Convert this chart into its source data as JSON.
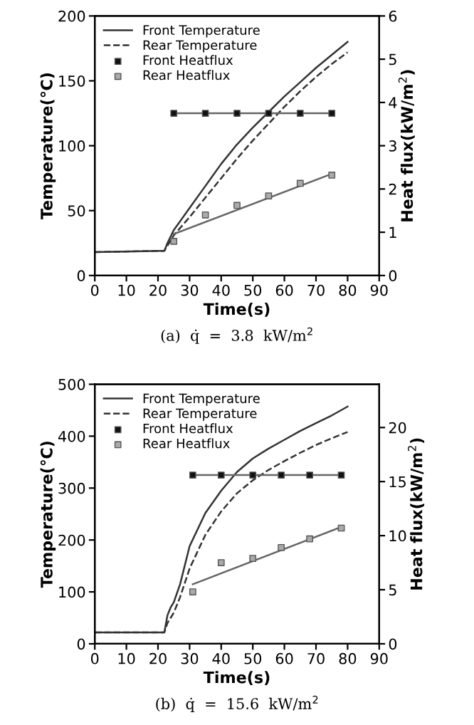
{
  "chart_data": [
    {
      "type": "line",
      "xlabel": "Time(s)",
      "ylabel": "Temperature(℃)",
      "y2label": "Heat flux(kW/m$^{2}$)",
      "xlim": [
        0,
        90
      ],
      "xticks": [
        0,
        10,
        20,
        30,
        40,
        50,
        60,
        70,
        80,
        90
      ],
      "ylim": [
        0,
        200
      ],
      "yticks": [
        0,
        50,
        100,
        150,
        200
      ],
      "y2lim": [
        0,
        6
      ],
      "y2ticks": [
        0,
        1,
        2,
        3,
        4,
        5,
        6
      ],
      "grid": false,
      "legend": "top left",
      "annotations": [
        "(a)  q̇  =  3.8  kW/m$^{2}$"
      ],
      "series": [
        {
          "name": "Front Temperature",
          "color": "#333333",
          "line_style": "solid",
          "x": [
            0,
            21,
            22,
            23,
            25,
            30,
            35,
            40,
            45,
            50,
            55,
            60,
            65,
            70,
            75,
            80
          ],
          "values": [
            18,
            19,
            19,
            25,
            35,
            52,
            69,
            86,
            101,
            114,
            126,
            138,
            149,
            160,
            170,
            180
          ]
        },
        {
          "name": "Rear Temperature",
          "color": "#333333",
          "line_style": "dashed",
          "x": [
            0,
            21,
            22,
            25,
            30,
            35,
            40,
            45,
            50,
            55,
            60,
            65,
            70,
            75,
            80
          ],
          "values": [
            18,
            19,
            19,
            31,
            45,
            60,
            75,
            90,
            104,
            117,
            130,
            142,
            153,
            163,
            172
          ]
        },
        {
          "name": "Front Heatflux",
          "type": "scatter",
          "axis": "y2",
          "marker": "square",
          "color": "#111111",
          "x": [
            25,
            35,
            45,
            55,
            65,
            75
          ],
          "values": [
            3.75,
            3.75,
            3.75,
            3.75,
            3.75,
            3.75
          ]
        },
        {
          "name": "Rear Heatflux",
          "type": "scatter",
          "axis": "y2",
          "marker": "square",
          "color": "#aaaaaa",
          "x": [
            25,
            35,
            45,
            55,
            65,
            75
          ],
          "values": [
            0.79,
            1.4,
            1.62,
            1.84,
            2.13,
            2.32
          ]
        },
        {
          "axis": "y2",
          "color": "#666666",
          "line_style": "solid",
          "x": [
            25,
            75
          ],
          "values": [
            3.75,
            3.75
          ]
        },
        {
          "axis": "y2",
          "color": "#666666",
          "line_style": "solid",
          "x": [
            25,
            75
          ],
          "values": [
            0.96,
            2.35
          ]
        }
      ]
    },
    {
      "type": "line",
      "xlabel": "Time(s)",
      "ylabel": "Temperature(℃)",
      "y2label": "Heat flux(kW/m$^{2}$)",
      "xlim": [
        0,
        90
      ],
      "xticks": [
        0,
        10,
        20,
        30,
        40,
        50,
        60,
        70,
        80,
        90
      ],
      "ylim": [
        0,
        500
      ],
      "yticks": [
        0,
        100,
        200,
        300,
        400,
        500
      ],
      "y2lim": [
        0,
        24
      ],
      "y2ticks": [
        0,
        5,
        10,
        15,
        20
      ],
      "grid": false,
      "legend": "top left",
      "annotations": [
        "(b)  q̇  =  15.6  kW/m$^{2}$"
      ],
      "series": [
        {
          "name": "Front Temperature",
          "color": "#333333",
          "line_style": "solid",
          "x": [
            0,
            21,
            22,
            23,
            24,
            25,
            27,
            30,
            35,
            40,
            45,
            50,
            55,
            60,
            65,
            70,
            75,
            80
          ],
          "values": [
            22,
            22,
            22,
            55,
            70,
            80,
            115,
            188,
            252,
            295,
            331,
            357,
            376,
            393,
            410,
            425,
            440,
            457
          ]
        },
        {
          "name": "Rear Temperature",
          "color": "#333333",
          "line_style": "dashed",
          "x": [
            0,
            21,
            22,
            23,
            25,
            27,
            30,
            35,
            40,
            45,
            50,
            55,
            60,
            65,
            70,
            75,
            80
          ],
          "values": [
            22,
            22,
            22,
            40,
            60,
            90,
            145,
            210,
            255,
            290,
            315,
            335,
            352,
            368,
            383,
            396,
            408
          ]
        },
        {
          "name": "Front Heatflux",
          "type": "scatter",
          "axis": "y2",
          "marker": "square",
          "color": "#111111",
          "x": [
            31,
            40,
            50,
            59,
            68,
            78
          ],
          "values": [
            15.6,
            15.6,
            15.6,
            15.6,
            15.6,
            15.6
          ]
        },
        {
          "name": "Rear Heatflux",
          "type": "scatter",
          "axis": "y2",
          "marker": "square",
          "color": "#aaaaaa",
          "x": [
            31,
            40,
            50,
            59,
            68,
            78
          ],
          "values": [
            4.8,
            7.5,
            7.9,
            8.9,
            9.7,
            10.7
          ]
        },
        {
          "axis": "y2",
          "color": "#666666",
          "line_style": "solid",
          "x": [
            31,
            78
          ],
          "values": [
            15.6,
            15.6
          ]
        },
        {
          "axis": "y2",
          "color": "#666666",
          "line_style": "solid",
          "x": [
            31,
            78
          ],
          "values": [
            5.5,
            10.8
          ]
        }
      ]
    }
  ]
}
